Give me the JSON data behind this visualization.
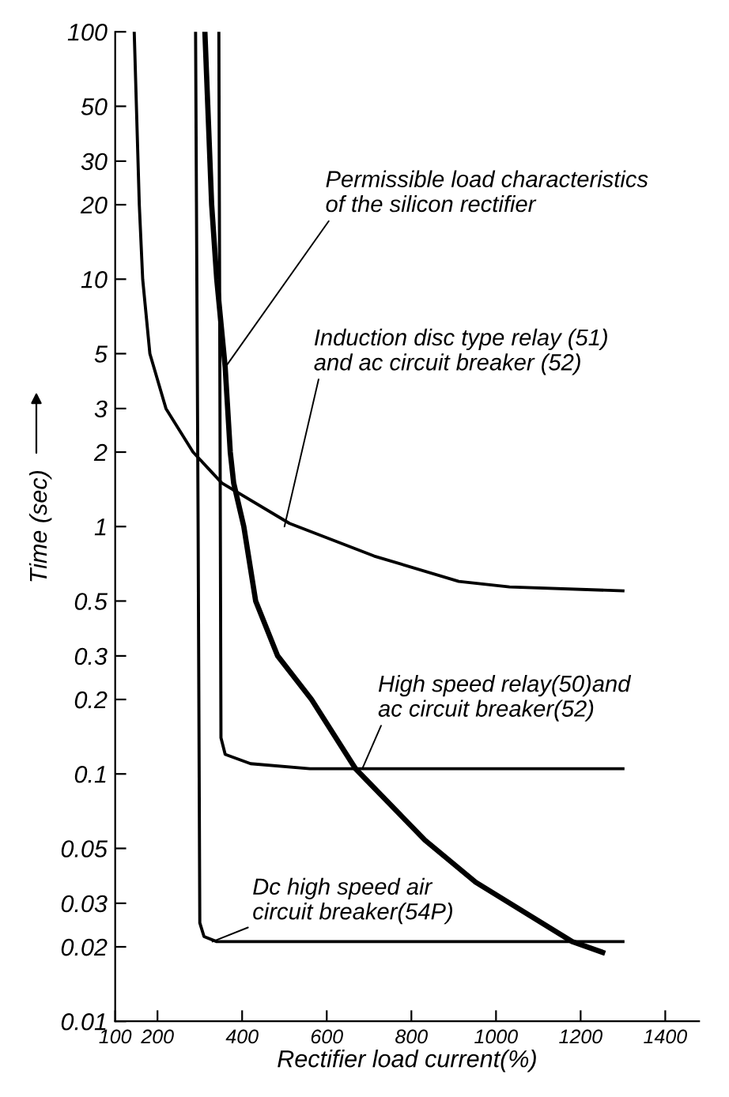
{
  "chart_data": {
    "type": "line",
    "xlabel": "Rectifier load current(%)",
    "ylabel": "Time (sec)",
    "log": "y",
    "xlim": [
      100,
      1480
    ],
    "xticks": [
      100,
      200,
      400,
      600,
      800,
      1000,
      1200,
      1400
    ],
    "ylim": [
      0.01,
      100
    ],
    "yticks": [
      0.01,
      0.02,
      0.03,
      0.05,
      0.1,
      0.2,
      0.3,
      0.5,
      1,
      2,
      3,
      5,
      10,
      20,
      30,
      50,
      100
    ],
    "grid": false,
    "marker": "none",
    "line_style": "solid",
    "series": [
      {
        "color": "#000000",
        "x": [
          145,
          157,
          165,
          182,
          220,
          284,
          352,
          512,
          712,
          912,
          1032,
          1300
        ],
        "values": [
          100,
          20,
          10,
          5,
          3,
          2,
          1.5,
          1.03,
          0.76,
          0.6,
          0.57,
          0.55
        ]
      },
      {
        "color": "#000000",
        "x": [
          290,
          296,
          300,
          310,
          340,
          1300
        ],
        "values": [
          100,
          1,
          0.025,
          0.022,
          0.021,
          0.021
        ]
      },
      {
        "color": "#000000",
        "x": [
          345,
          350,
          360,
          420,
          560,
          1300
        ],
        "values": [
          100,
          0.14,
          0.12,
          0.11,
          0.105,
          0.105
        ]
      },
      {
        "color": "#000000",
        "x": [
          312,
          328,
          340,
          360,
          372,
          380,
          404,
          432,
          484,
          564,
          668,
          832,
          952,
          1180,
          1252
        ],
        "values": [
          100,
          20,
          10,
          4.4,
          2,
          1.5,
          1,
          0.5,
          0.3,
          0.2,
          0.105,
          0.054,
          0.0365,
          0.021,
          0.019
        ]
      }
    ],
    "annotations": [
      {
        "text": "Permissible load characteristics\nof the silicon rectifier",
        "x": 360,
        "y": 4.4
      },
      {
        "text": "Induction disc type relay (51)\nand ac circuit breaker (52)",
        "x": 500,
        "y": 1
      },
      {
        "text": "High speed relay(50)and\nac circuit breaker(52)",
        "x": 684,
        "y": 0.105
      },
      {
        "text": "Dc high speed air\ncircuit breaker(54P)",
        "x": 330,
        "y": 0.021
      }
    ]
  }
}
